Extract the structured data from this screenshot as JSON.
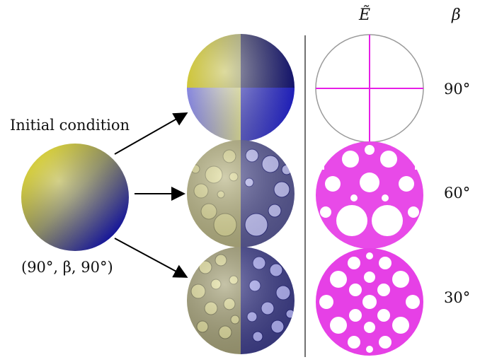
{
  "labels": {
    "initial_condition": "Initial condition",
    "triple": "(90°, β, 90°)",
    "column_e": "Ẽ",
    "column_beta": "β"
  },
  "rows": [
    {
      "beta": "90°"
    },
    {
      "beta": "60°"
    },
    {
      "beta": "30°"
    }
  ],
  "colors": {
    "yellow": "#e6dc1e",
    "blue": "#1a1ab4",
    "magenta": "#e61ee6",
    "divider": "#444444"
  }
}
